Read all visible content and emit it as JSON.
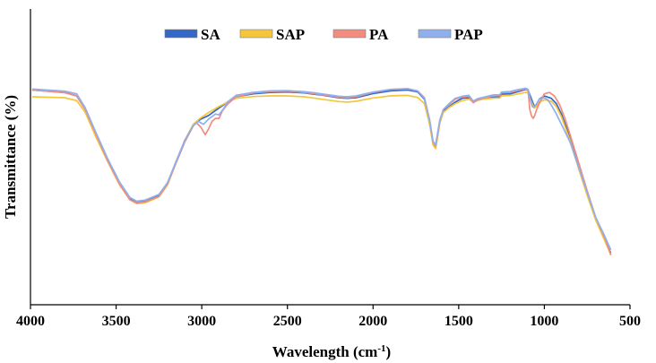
{
  "chart_data": {
    "type": "line",
    "title": "",
    "xlabel": "Wavelength (cm",
    "xlabel_sup": "-1",
    "xlabel_close": ")",
    "ylabel": "Transmittance (%)",
    "xlim": [
      4000,
      500
    ],
    "x_inverted": true,
    "ylim": [
      0,
      100
    ],
    "xticks": [
      4000,
      3500,
      3000,
      2500,
      2000,
      1500,
      1000,
      500
    ],
    "legend_position": "top-center",
    "series": [
      {
        "name": "SA",
        "color": "#3567c6",
        "points": [
          [
            3990,
            72.6
          ],
          [
            3800,
            71.8
          ],
          [
            3730,
            70.6
          ],
          [
            3680,
            66.0
          ],
          [
            3620,
            58.0
          ],
          [
            3550,
            49.0
          ],
          [
            3480,
            41.0
          ],
          [
            3420,
            36.0
          ],
          [
            3380,
            34.9
          ],
          [
            3330,
            35.2
          ],
          [
            3250,
            37.0
          ],
          [
            3200,
            41.0
          ],
          [
            3150,
            48.0
          ],
          [
            3100,
            55.0
          ],
          [
            3050,
            60.5
          ],
          [
            3010,
            62.6
          ],
          [
            2960,
            64.0
          ],
          [
            2900,
            66.5
          ],
          [
            2850,
            68.5
          ],
          [
            2800,
            70.3
          ],
          [
            2700,
            71.3
          ],
          [
            2600,
            71.8
          ],
          [
            2500,
            71.9
          ],
          [
            2400,
            71.6
          ],
          [
            2350,
            71.2
          ],
          [
            2300,
            70.9
          ],
          [
            2200,
            70.0
          ],
          [
            2150,
            69.8
          ],
          [
            2100,
            70.0
          ],
          [
            2000,
            71.4
          ],
          [
            1900,
            72.3
          ],
          [
            1800,
            72.6
          ],
          [
            1740,
            72.0
          ],
          [
            1700,
            69.5
          ],
          [
            1670,
            62.0
          ],
          [
            1650,
            55.0
          ],
          [
            1635,
            53.5
          ],
          [
            1625,
            57.0
          ],
          [
            1610,
            62.0
          ],
          [
            1590,
            65.5
          ],
          [
            1560,
            66.8
          ],
          [
            1520,
            68.5
          ],
          [
            1480,
            69.8
          ],
          [
            1440,
            70.0
          ],
          [
            1415,
            68.8
          ],
          [
            1390,
            69.6
          ],
          [
            1360,
            70.0
          ],
          [
            1300,
            70.3
          ],
          [
            1260,
            70.3
          ],
          [
            1250,
            71.2
          ],
          [
            1200,
            71.3
          ],
          [
            1150,
            72.1
          ],
          [
            1110,
            72.8
          ],
          [
            1095,
            72.5
          ],
          [
            1075,
            69.5
          ],
          [
            1060,
            67.2
          ],
          [
            1045,
            67.6
          ],
          [
            1030,
            69.5
          ],
          [
            1000,
            70.6
          ],
          [
            960,
            69.8
          ],
          [
            930,
            68.0
          ],
          [
            900,
            64.5
          ],
          [
            850,
            56.5
          ],
          [
            800,
            47.0
          ],
          [
            750,
            38.0
          ],
          [
            700,
            29.0
          ],
          [
            650,
            23.0
          ],
          [
            620,
            18.4
          ],
          [
            612,
            17.6
          ]
        ]
      },
      {
        "name": "SAP",
        "color": "#f5c63a",
        "points": [
          [
            3990,
            70.3
          ],
          [
            3800,
            70.0
          ],
          [
            3730,
            69.0
          ],
          [
            3680,
            65.0
          ],
          [
            3620,
            57.0
          ],
          [
            3550,
            48.5
          ],
          [
            3480,
            40.5
          ],
          [
            3420,
            35.5
          ],
          [
            3380,
            34.2
          ],
          [
            3330,
            34.5
          ],
          [
            3250,
            36.5
          ],
          [
            3200,
            40.5
          ],
          [
            3150,
            48.0
          ],
          [
            3100,
            55.5
          ],
          [
            3050,
            61.0
          ],
          [
            3010,
            63.0
          ],
          [
            2960,
            65.0
          ],
          [
            2900,
            67.0
          ],
          [
            2850,
            68.5
          ],
          [
            2800,
            69.8
          ],
          [
            2700,
            70.4
          ],
          [
            2600,
            70.6
          ],
          [
            2500,
            70.6
          ],
          [
            2400,
            70.3
          ],
          [
            2350,
            69.9
          ],
          [
            2300,
            69.5
          ],
          [
            2200,
            68.7
          ],
          [
            2150,
            68.5
          ],
          [
            2100,
            68.8
          ],
          [
            2000,
            69.9
          ],
          [
            1900,
            70.6
          ],
          [
            1800,
            70.8
          ],
          [
            1740,
            70.1
          ],
          [
            1700,
            68.0
          ],
          [
            1670,
            61.0
          ],
          [
            1650,
            54.0
          ],
          [
            1635,
            52.8
          ],
          [
            1625,
            56.0
          ],
          [
            1610,
            61.5
          ],
          [
            1590,
            65.0
          ],
          [
            1560,
            66.5
          ],
          [
            1520,
            68.0
          ],
          [
            1480,
            69.0
          ],
          [
            1440,
            69.5
          ],
          [
            1415,
            68.5
          ],
          [
            1390,
            69.1
          ],
          [
            1360,
            69.5
          ],
          [
            1300,
            69.8
          ],
          [
            1260,
            69.9
          ],
          [
            1250,
            70.6
          ],
          [
            1200,
            70.8
          ],
          [
            1150,
            71.3
          ],
          [
            1110,
            71.8
          ],
          [
            1095,
            71.6
          ],
          [
            1075,
            68.5
          ],
          [
            1060,
            66.5
          ],
          [
            1045,
            67.0
          ],
          [
            1030,
            68.5
          ],
          [
            1000,
            69.3
          ],
          [
            960,
            68.8
          ],
          [
            930,
            67.0
          ],
          [
            900,
            63.5
          ],
          [
            850,
            55.5
          ],
          [
            800,
            46.0
          ],
          [
            750,
            37.0
          ],
          [
            700,
            28.5
          ],
          [
            650,
            22.0
          ],
          [
            620,
            18.0
          ],
          [
            612,
            16.7
          ]
        ]
      },
      {
        "name": "PA",
        "color": "#f28c7e",
        "points": [
          [
            3990,
            72.6
          ],
          [
            3800,
            71.7
          ],
          [
            3730,
            70.6
          ],
          [
            3680,
            66.0
          ],
          [
            3620,
            58.0
          ],
          [
            3550,
            48.8
          ],
          [
            3480,
            40.8
          ],
          [
            3420,
            35.5
          ],
          [
            3380,
            34.4
          ],
          [
            3330,
            34.8
          ],
          [
            3250,
            36.6
          ],
          [
            3200,
            40.8
          ],
          [
            3150,
            48.0
          ],
          [
            3100,
            55.0
          ],
          [
            3050,
            60.5
          ],
          [
            3030,
            61.5
          ],
          [
            3005,
            60.0
          ],
          [
            2980,
            57.5
          ],
          [
            2960,
            59.5
          ],
          [
            2940,
            62.0
          ],
          [
            2920,
            63.0
          ],
          [
            2900,
            63.0
          ],
          [
            2880,
            65.5
          ],
          [
            2850,
            67.8
          ],
          [
            2800,
            70.3
          ],
          [
            2700,
            71.6
          ],
          [
            2600,
            72.1
          ],
          [
            2500,
            72.2
          ],
          [
            2400,
            71.8
          ],
          [
            2350,
            71.4
          ],
          [
            2300,
            71.0
          ],
          [
            2200,
            70.2
          ],
          [
            2150,
            70.0
          ],
          [
            2100,
            70.3
          ],
          [
            2000,
            71.8
          ],
          [
            1900,
            72.8
          ],
          [
            1800,
            73.1
          ],
          [
            1740,
            72.3
          ],
          [
            1700,
            70.0
          ],
          [
            1670,
            62.5
          ],
          [
            1650,
            55.0
          ],
          [
            1635,
            53.6
          ],
          [
            1625,
            57.0
          ],
          [
            1610,
            62.0
          ],
          [
            1590,
            66.0
          ],
          [
            1560,
            67.5
          ],
          [
            1520,
            69.5
          ],
          [
            1480,
            70.2
          ],
          [
            1440,
            70.4
          ],
          [
            1415,
            68.3
          ],
          [
            1390,
            69.2
          ],
          [
            1360,
            69.8
          ],
          [
            1300,
            70.6
          ],
          [
            1260,
            70.7
          ],
          [
            1250,
            71.7
          ],
          [
            1200,
            71.8
          ],
          [
            1150,
            72.5
          ],
          [
            1110,
            73.0
          ],
          [
            1095,
            72.3
          ],
          [
            1085,
            66.0
          ],
          [
            1075,
            63.8
          ],
          [
            1065,
            63.0
          ],
          [
            1055,
            64.2
          ],
          [
            1045,
            66.0
          ],
          [
            1030,
            68.0
          ],
          [
            1000,
            71.3
          ],
          [
            970,
            71.8
          ],
          [
            940,
            70.5
          ],
          [
            910,
            67.5
          ],
          [
            880,
            63.0
          ],
          [
            850,
            57.5
          ],
          [
            800,
            48.0
          ],
          [
            750,
            38.5
          ],
          [
            700,
            29.5
          ],
          [
            650,
            23.0
          ],
          [
            620,
            18.2
          ],
          [
            612,
            16.9
          ]
        ]
      },
      {
        "name": "PAP",
        "color": "#8fb0ec",
        "points": [
          [
            3990,
            72.9
          ],
          [
            3800,
            72.2
          ],
          [
            3730,
            71.3
          ],
          [
            3680,
            66.5
          ],
          [
            3620,
            58.5
          ],
          [
            3550,
            49.5
          ],
          [
            3480,
            41.5
          ],
          [
            3420,
            36.3
          ],
          [
            3380,
            35.0
          ],
          [
            3330,
            35.4
          ],
          [
            3250,
            37.3
          ],
          [
            3200,
            41.3
          ],
          [
            3150,
            48.5
          ],
          [
            3100,
            55.5
          ],
          [
            3050,
            60.5
          ],
          [
            3020,
            62.0
          ],
          [
            2990,
            61.0
          ],
          [
            2960,
            62.8
          ],
          [
            2920,
            64.5
          ],
          [
            2900,
            64.2
          ],
          [
            2870,
            66.5
          ],
          [
            2850,
            68.5
          ],
          [
            2800,
            70.8
          ],
          [
            2700,
            71.8
          ],
          [
            2600,
            72.3
          ],
          [
            2500,
            72.4
          ],
          [
            2400,
            72.0
          ],
          [
            2350,
            71.7
          ],
          [
            2300,
            71.3
          ],
          [
            2200,
            70.5
          ],
          [
            2150,
            70.3
          ],
          [
            2100,
            70.6
          ],
          [
            2000,
            71.9
          ],
          [
            1900,
            72.8
          ],
          [
            1800,
            73.0
          ],
          [
            1740,
            72.3
          ],
          [
            1700,
            69.8
          ],
          [
            1670,
            62.3
          ],
          [
            1650,
            55.3
          ],
          [
            1635,
            54.0
          ],
          [
            1625,
            57.5
          ],
          [
            1610,
            62.5
          ],
          [
            1590,
            66.0
          ],
          [
            1560,
            67.8
          ],
          [
            1520,
            69.8
          ],
          [
            1480,
            70.5
          ],
          [
            1440,
            70.8
          ],
          [
            1415,
            68.8
          ],
          [
            1390,
            69.6
          ],
          [
            1360,
            70.1
          ],
          [
            1300,
            70.9
          ],
          [
            1260,
            71.0
          ],
          [
            1250,
            71.9
          ],
          [
            1200,
            72.1
          ],
          [
            1150,
            72.8
          ],
          [
            1110,
            73.2
          ],
          [
            1095,
            72.8
          ],
          [
            1080,
            69.0
          ],
          [
            1070,
            67.0
          ],
          [
            1060,
            66.8
          ],
          [
            1045,
            68.0
          ],
          [
            1030,
            69.5
          ],
          [
            1000,
            70.0
          ],
          [
            980,
            69.3
          ],
          [
            960,
            67.5
          ],
          [
            930,
            64.5
          ],
          [
            900,
            61.0
          ],
          [
            850,
            55.0
          ],
          [
            800,
            46.5
          ],
          [
            750,
            38.0
          ],
          [
            700,
            29.5
          ],
          [
            650,
            23.5
          ],
          [
            620,
            19.5
          ],
          [
            612,
            18.5
          ]
        ]
      }
    ]
  }
}
